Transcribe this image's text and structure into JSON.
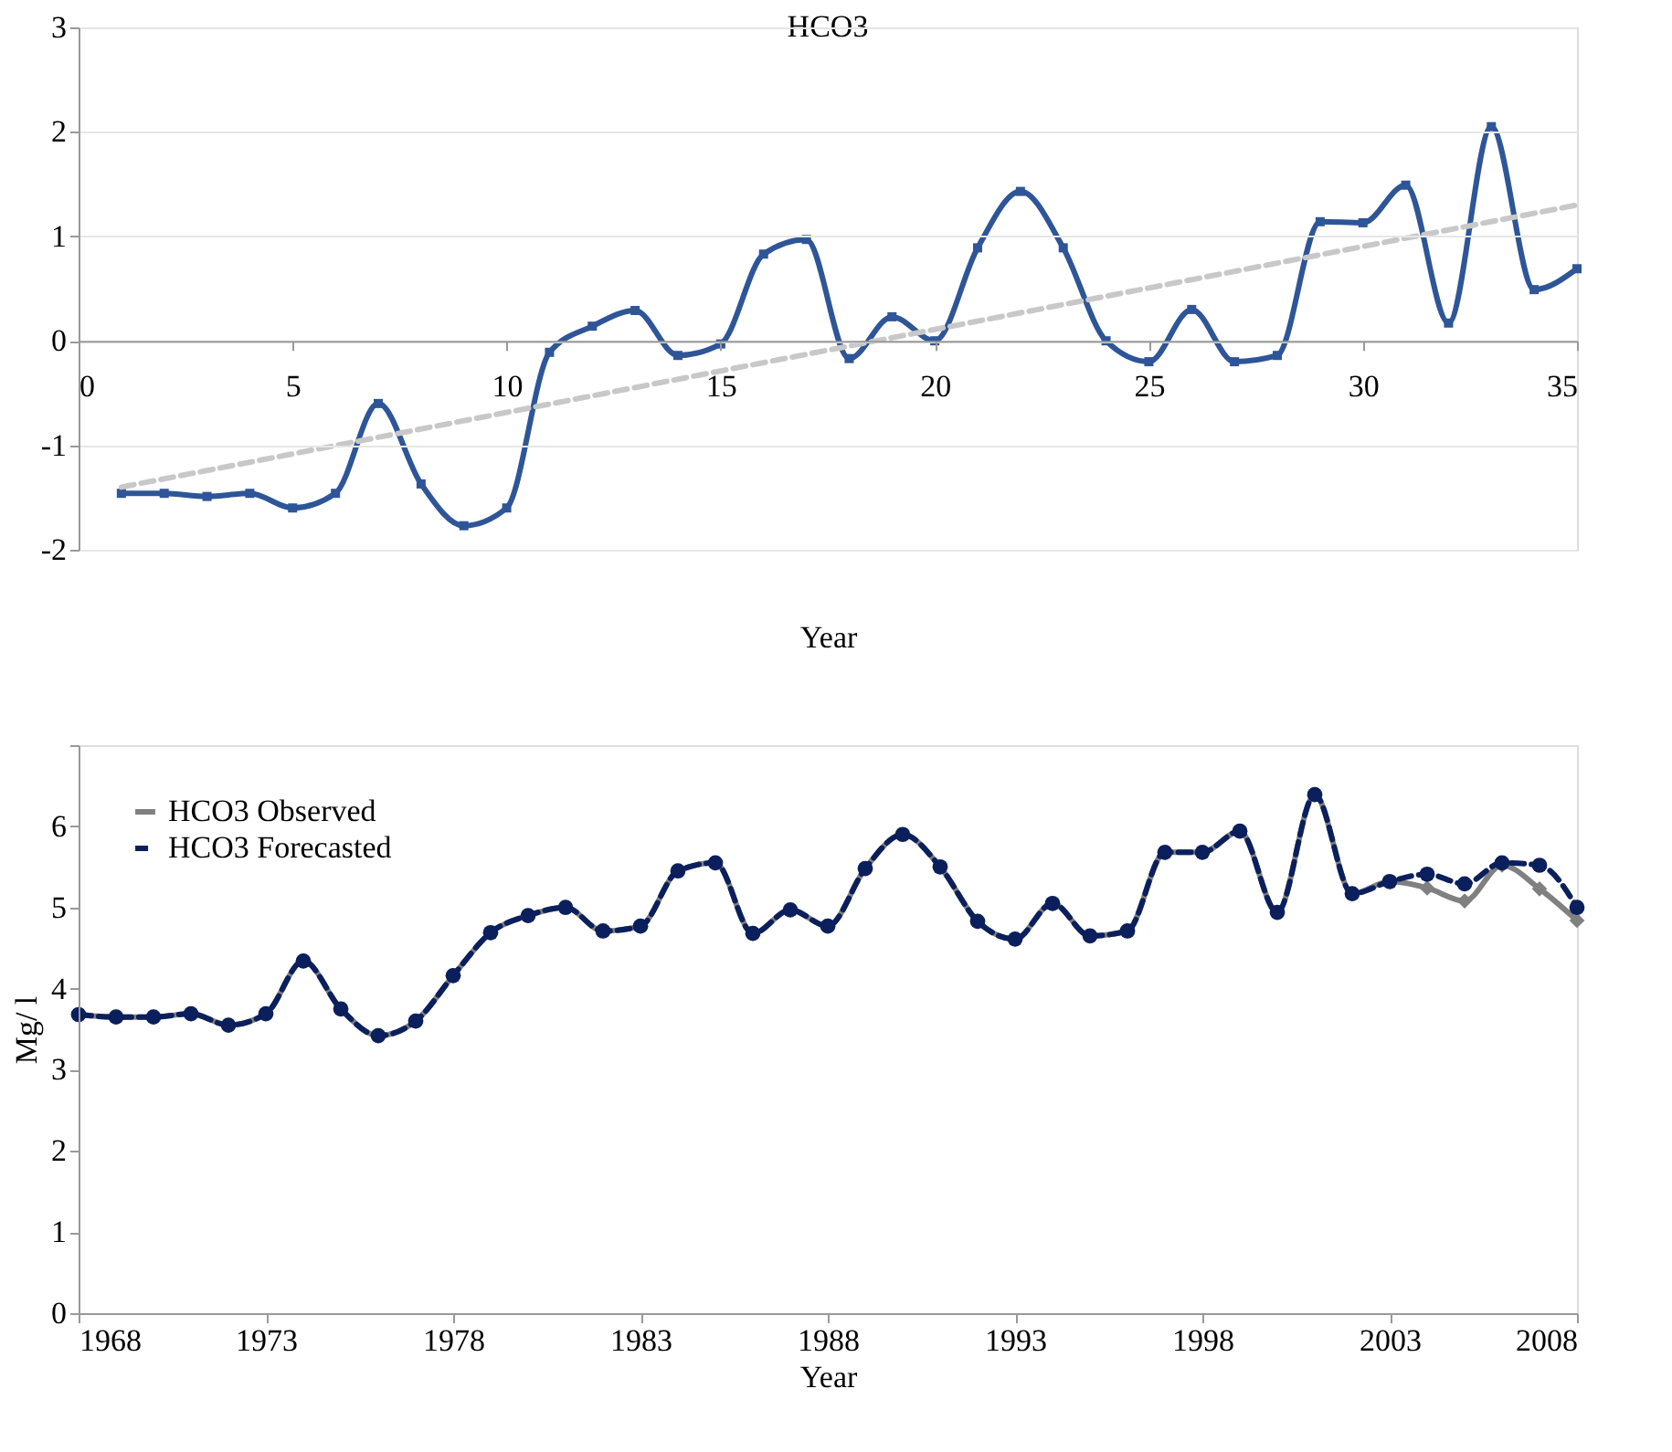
{
  "chart_data": [
    {
      "type": "line",
      "title": "HCO3",
      "xlabel": "Year",
      "x": [
        1,
        2,
        3,
        4,
        5,
        6,
        7,
        8,
        9,
        10,
        11,
        12,
        13,
        14,
        15,
        16,
        17,
        18,
        19,
        20,
        21,
        22,
        23,
        24,
        25,
        26,
        27,
        28,
        29,
        30,
        31,
        32,
        33,
        34,
        35
      ],
      "xlim": [
        0,
        35
      ],
      "xticks": [
        0,
        5,
        10,
        15,
        20,
        25,
        30,
        35
      ],
      "ylim": [
        -2,
        3
      ],
      "yticks": [
        -2,
        -1,
        0,
        1,
        2,
        3
      ],
      "grid": "y",
      "legend": false,
      "marker": "square",
      "series": [
        {
          "color": "#2e5597",
          "values": [
            -1.46,
            -1.46,
            -1.49,
            -1.46,
            -1.6,
            -1.46,
            -0.6,
            -1.37,
            -1.77,
            -1.6,
            -0.11,
            0.14,
            0.29,
            -0.14,
            -0.03,
            0.83,
            0.97,
            -0.17,
            0.23,
            0.0,
            0.89,
            1.43,
            0.89,
            0.0,
            -0.2,
            0.3,
            -0.2,
            -0.14,
            1.14,
            1.13,
            1.49,
            0.17,
            2.05,
            0.49,
            0.69
          ]
        },
        {
          "type": "line",
          "x": [
            1,
            35
          ],
          "values": [
            -1.4,
            1.3
          ],
          "color": "#c8c8c8",
          "marker": "none",
          "line_style": "dashed"
        }
      ]
    },
    {
      "type": "line",
      "xlabel": "Year",
      "ylabel": "Mg/ l",
      "x": [
        1968,
        1969,
        1970,
        1971,
        1972,
        1973,
        1974,
        1975,
        1976,
        1977,
        1978,
        1979,
        1980,
        1981,
        1982,
        1983,
        1984,
        1985,
        1986,
        1987,
        1988,
        1989,
        1990,
        1991,
        1992,
        1993,
        1994,
        1995,
        1996,
        1997,
        1998,
        1999,
        2000,
        2001,
        2002,
        2003,
        2004,
        2005,
        2006,
        2007,
        2008
      ],
      "xlim": [
        1968,
        2008
      ],
      "xticks": [
        1968,
        1973,
        1978,
        1983,
        1988,
        1993,
        1998,
        2003,
        2008
      ],
      "ylim": [
        0,
        7
      ],
      "yticks": [
        0,
        1,
        2,
        3,
        4,
        5,
        6,
        {
          "value": 7,
          "label": null
        }
      ],
      "grid": false,
      "legend": "top left",
      "series": [
        {
          "name": "HCO3 Observed",
          "color": "#808080",
          "marker": "diamond",
          "line_style": "solid",
          "values": [
            3.68,
            3.65,
            3.65,
            3.69,
            3.55,
            3.69,
            4.34,
            3.75,
            3.42,
            3.6,
            4.16,
            4.69,
            4.9,
            5.0,
            4.71,
            4.77,
            5.45,
            5.55,
            4.68,
            4.97,
            4.77,
            5.48,
            5.9,
            5.5,
            4.83,
            4.61,
            5.05,
            4.65,
            4.71,
            5.68,
            5.68,
            5.94,
            4.94,
            6.39,
            5.17,
            5.32,
            5.24,
            5.08,
            5.52,
            5.23,
            4.84
          ]
        },
        {
          "name": "HCO3 Forecasted",
          "color": "#0a1f5c",
          "marker": "circle",
          "line_style": "dashed",
          "values": [
            3.68,
            3.65,
            3.65,
            3.69,
            3.55,
            3.69,
            4.34,
            3.75,
            3.42,
            3.6,
            4.16,
            4.69,
            4.9,
            5.0,
            4.71,
            4.77,
            5.45,
            5.55,
            4.68,
            4.97,
            4.77,
            5.48,
            5.9,
            5.5,
            4.83,
            4.61,
            5.05,
            4.65,
            4.71,
            5.68,
            5.68,
            5.94,
            4.94,
            6.39,
            5.17,
            5.32,
            5.41,
            5.29,
            5.55,
            5.52,
            5.0
          ]
        }
      ]
    }
  ]
}
